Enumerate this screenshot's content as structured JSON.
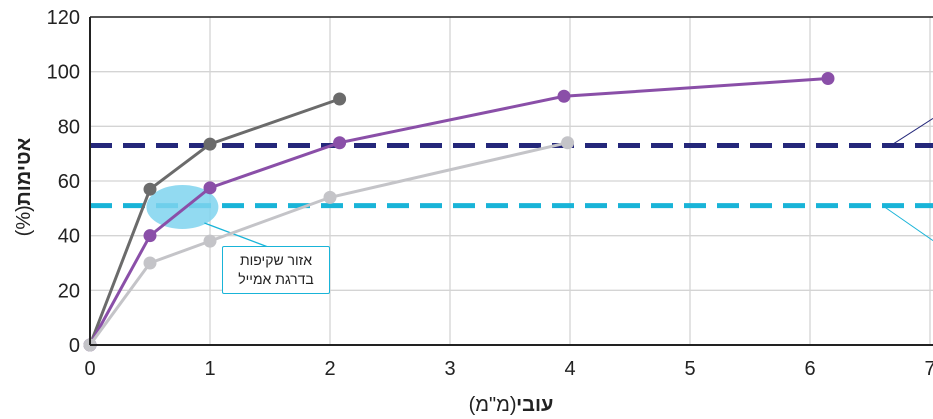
{
  "chart_data": {
    "type": "line",
    "xlabel_bold": "עובי",
    "xlabel_rest": "(מ\"מ)",
    "ylabel_bold": "אטימות",
    "ylabel_rest": "(%)",
    "xlim": [
      0,
      7
    ],
    "ylim": [
      0,
      120
    ],
    "xticks": [
      0,
      1,
      2,
      3,
      4,
      5,
      6,
      7
    ],
    "yticks": [
      0,
      20,
      40,
      60,
      80,
      100,
      120
    ],
    "grid": true,
    "series": [
      {
        "color": "#6b6b6b",
        "points": [
          [
            0,
            0
          ],
          [
            0.5,
            57
          ],
          [
            1,
            73.5
          ],
          [
            2.08,
            90
          ]
        ]
      },
      {
        "color": "#8a4fa8",
        "points": [
          [
            0,
            0
          ],
          [
            0.5,
            40
          ],
          [
            1,
            57.5
          ],
          [
            2.08,
            74
          ],
          [
            3.95,
            91
          ],
          [
            6.15,
            97.5
          ]
        ]
      },
      {
        "color": "#c4c4c8",
        "points": [
          [
            0,
            0
          ],
          [
            0.5,
            30
          ],
          [
            1,
            38
          ],
          [
            2,
            54
          ],
          [
            3.98,
            74
          ]
        ]
      }
    ],
    "reference_lines": [
      {
        "y": 73,
        "color": "#24277a",
        "style": "dashed"
      },
      {
        "y": 51,
        "color": "#19b4d8",
        "style": "dashed"
      }
    ],
    "annotations": {
      "callout_line1": "אזור שקיפות",
      "callout_line2": "בדרגת אמייל",
      "highlight_center": [
        0.77,
        50.5
      ],
      "highlight_color": "#7fd3ee"
    }
  }
}
